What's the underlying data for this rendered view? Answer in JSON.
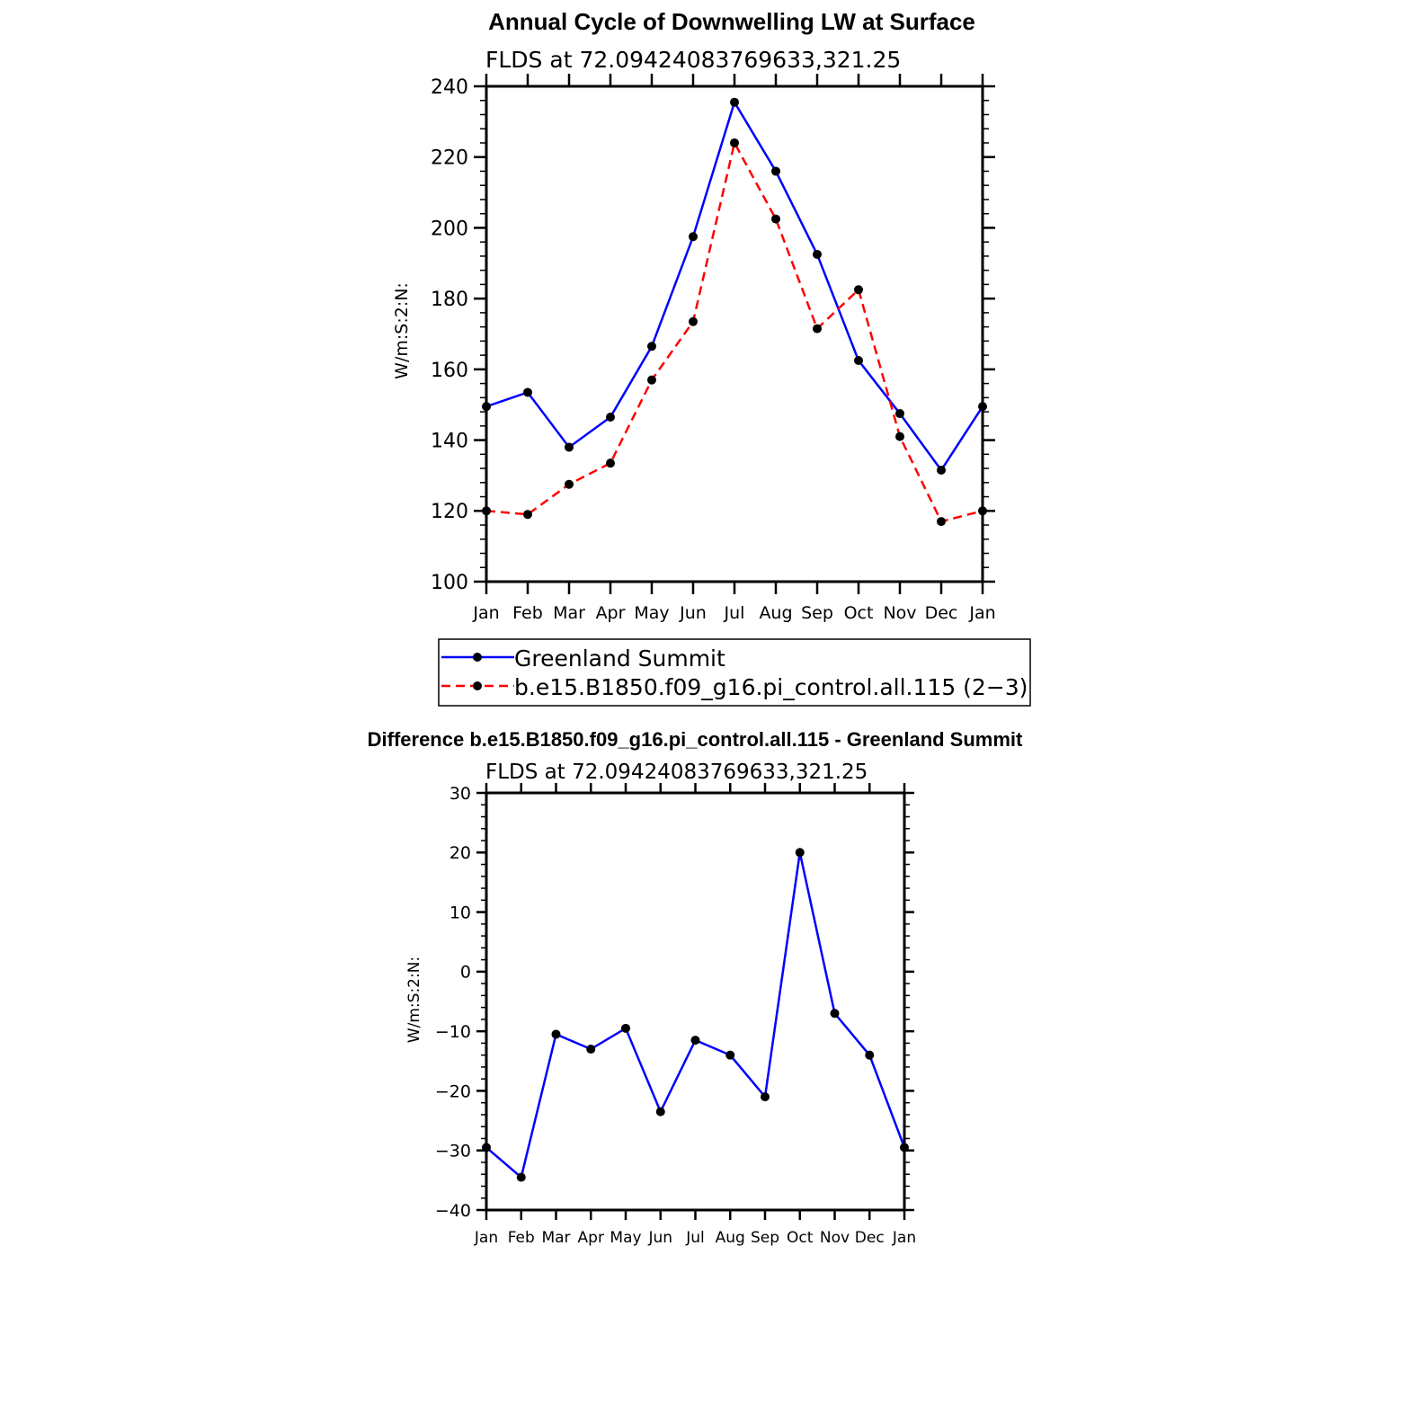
{
  "chart_data": [
    {
      "type": "line",
      "title": "Annual Cycle of Downwelling LW at Surface",
      "subtitle": "FLDS at 72.09424083769633,321.25",
      "ylabel": "W/m:S:2:N:",
      "xlabel": "",
      "ylim": [
        100,
        240
      ],
      "yticks": [
        100,
        120,
        140,
        160,
        180,
        200,
        220,
        240
      ],
      "categories": [
        "Jan",
        "Feb",
        "Mar",
        "Apr",
        "May",
        "Jun",
        "Jul",
        "Aug",
        "Sep",
        "Oct",
        "Nov",
        "Dec",
        "Jan"
      ],
      "series": [
        {
          "name": "Greenland Summit",
          "color": "#0000ff",
          "dash": "solid",
          "values": [
            149.5,
            153.5,
            138,
            146.5,
            166.5,
            197.5,
            235.5,
            216,
            192.5,
            162.5,
            147.5,
            131.5,
            149.5
          ]
        },
        {
          "name": "b.e15.B1850.f09_g16.pi_control.all.115 (2−3)",
          "color": "#ff0000",
          "dash": "dashed",
          "values": [
            120,
            119,
            127.5,
            133.5,
            157,
            173.5,
            224,
            202.5,
            171.5,
            182.5,
            141,
            117,
            120
          ]
        }
      ],
      "legend_position": "below"
    },
    {
      "type": "line",
      "title": "Difference b.e15.B1850.f09_g16.pi_control.all.115 - Greenland Summit",
      "subtitle": "FLDS at 72.09424083769633,321.25",
      "ylabel": "W/m:S:2:N:",
      "xlabel": "",
      "ylim": [
        -40,
        30
      ],
      "yticks": [
        -40,
        -30,
        -20,
        -10,
        0,
        10,
        20,
        30
      ],
      "ytick_labels": [
        "−40",
        "−30",
        "−20",
        "−10",
        "0",
        "10",
        "20",
        "30"
      ],
      "categories": [
        "Jan",
        "Feb",
        "Mar",
        "Apr",
        "May",
        "Jun",
        "Jul",
        "Aug",
        "Sep",
        "Oct",
        "Nov",
        "Dec",
        "Jan"
      ],
      "series": [
        {
          "name": "Difference",
          "color": "#0000ff",
          "dash": "solid",
          "values": [
            -29.5,
            -34.5,
            -10.5,
            -13,
            -9.5,
            -23.5,
            -11.5,
            -14,
            -21,
            20,
            -7,
            -14,
            -29.5
          ]
        }
      ]
    }
  ]
}
